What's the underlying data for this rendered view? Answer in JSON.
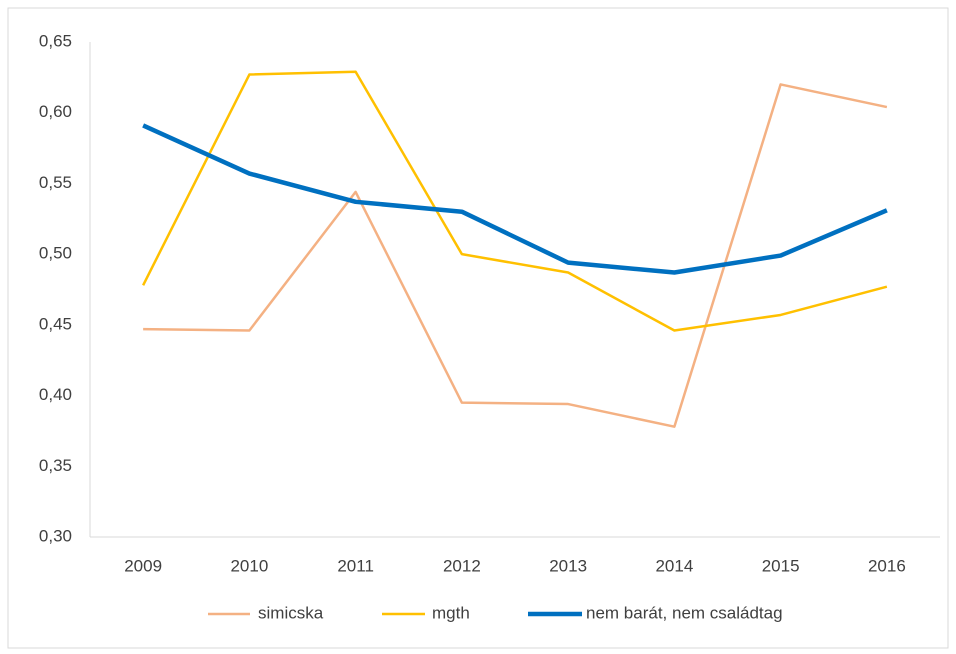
{
  "chart_data": {
    "type": "line",
    "categories": [
      "2009",
      "2010",
      "2011",
      "2012",
      "2013",
      "2014",
      "2015",
      "2016"
    ],
    "series": [
      {
        "name": "simicska",
        "color": "#f4b183",
        "values": [
          0.447,
          0.446,
          0.544,
          0.395,
          0.394,
          0.378,
          0.62,
          0.604
        ]
      },
      {
        "name": "mgth",
        "color": "#ffc000",
        "values": [
          0.478,
          0.627,
          0.629,
          0.5,
          0.487,
          0.446,
          0.457,
          0.477
        ]
      },
      {
        "name": "nem barát, nem családtag",
        "color": "#0070c0",
        "values": [
          0.591,
          0.557,
          0.537,
          0.53,
          0.494,
          0.487,
          0.499,
          0.531
        ]
      }
    ],
    "ylim": [
      0.3,
      0.65
    ],
    "yticks": [
      {
        "value": 0.3,
        "label": "0,30"
      },
      {
        "value": 0.35,
        "label": "0,35"
      },
      {
        "value": 0.4,
        "label": "0,40"
      },
      {
        "value": 0.45,
        "label": "0,45"
      },
      {
        "value": 0.5,
        "label": "0,50"
      },
      {
        "value": 0.55,
        "label": "0,55"
      },
      {
        "value": 0.6,
        "label": "0,60"
      },
      {
        "value": 0.65,
        "label": "0,65"
      }
    ],
    "grid": false,
    "legend": "bottom"
  }
}
